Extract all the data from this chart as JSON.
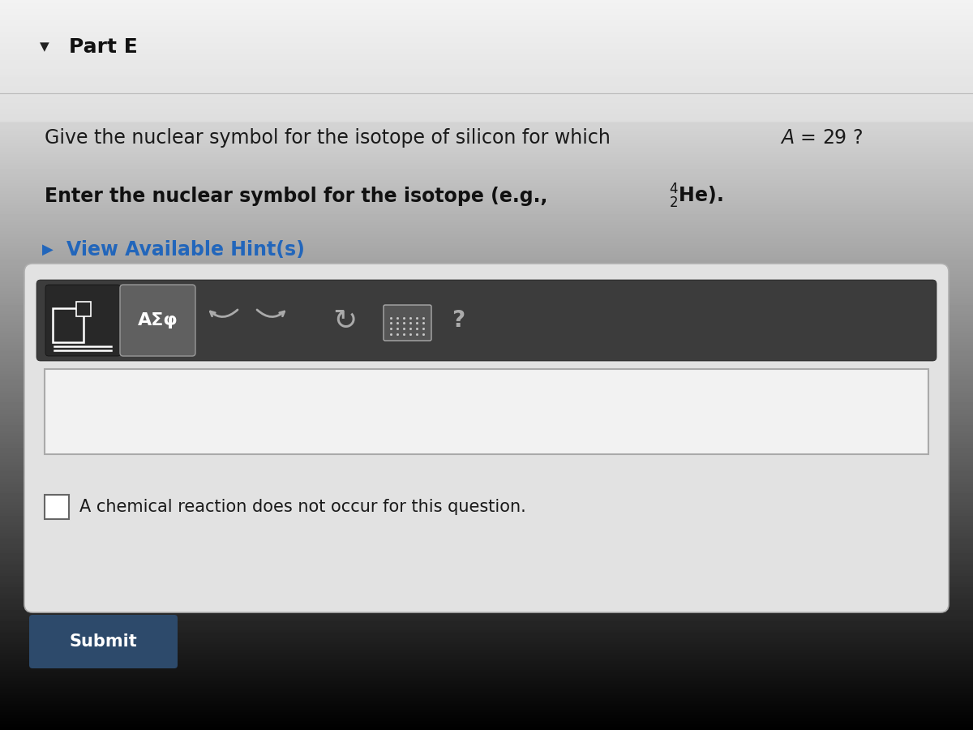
{
  "bg_top_color": "#d8d8d8",
  "bg_bottom_color": "#c0c0c0",
  "title_arrow": "▼",
  "title_text": "Part E",
  "question_line1": "Give the nuclear symbol for the isotope of silicon for which ",
  "question_math_italic": "A",
  "question_math_rest": " = 29 ?",
  "instruction_bold_pre": "Enter the nuclear symbol for the isotope (e.g., ",
  "instruction_end": ").",
  "hint_arrow": "▶",
  "hint_text": "View Available Hint(s)",
  "toolbar_symbol_text": "ΑΣφ",
  "checkbox_label": "A chemical reaction does not occur for this question.",
  "submit_text": "Submit",
  "submit_button_bg": "#2d4a6b",
  "hint_color": "#2266bb",
  "panel_bg": "#e4e4e4",
  "toolbar_dark_bg": "#3c3c3c",
  "toolbar_btn1_bg": "#303030",
  "toolbar_btn2_bg": "#484848",
  "input_box_bg": "#f2f2f2"
}
